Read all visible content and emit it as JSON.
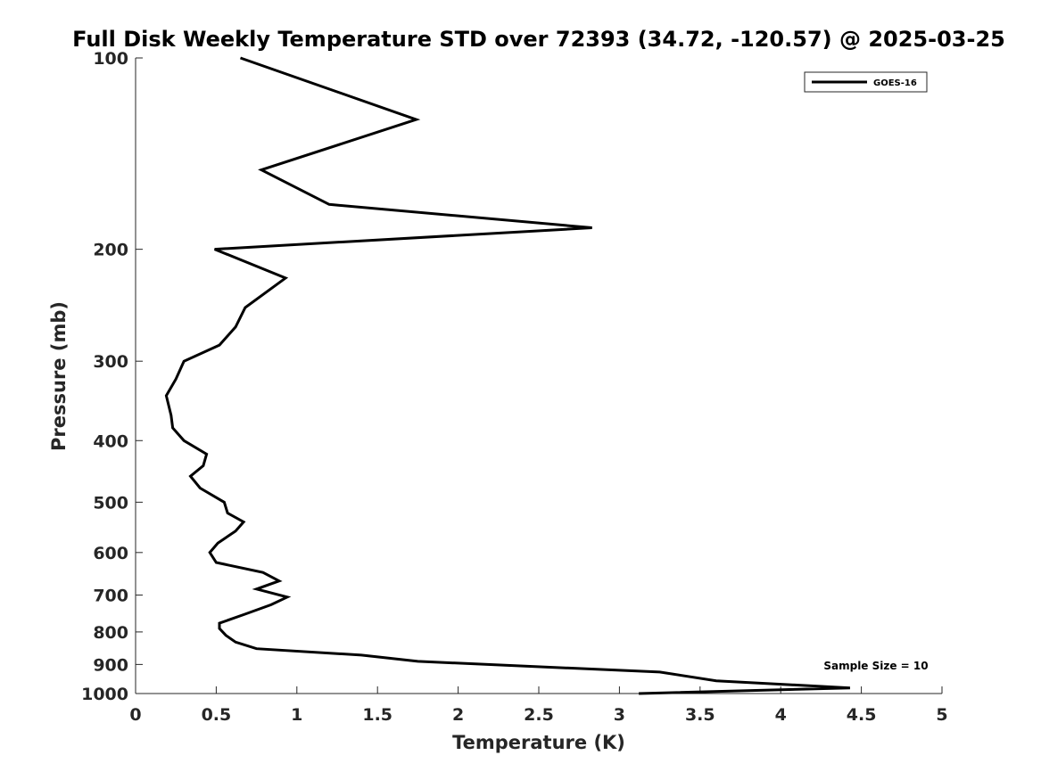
{
  "chart_data": {
    "type": "line",
    "title": "Full Disk Weekly Temperature STD over 72393 (34.72, -120.57) @ 2025-03-25",
    "xlabel": "Temperature (K)",
    "ylabel": "Pressure (mb)",
    "xlim": [
      0,
      5
    ],
    "ylim": [
      100,
      1000
    ],
    "y_scale": "log",
    "y_reversed": true,
    "grid": false,
    "legend_position": "top-right",
    "x_ticks": [
      {
        "value": 0,
        "label": "0"
      },
      {
        "value": 0.5,
        "label": "0.5"
      },
      {
        "value": 1,
        "label": "1"
      },
      {
        "value": 1.5,
        "label": "1.5"
      },
      {
        "value": 2,
        "label": "2"
      },
      {
        "value": 2.5,
        "label": "2.5"
      },
      {
        "value": 3,
        "label": "3"
      },
      {
        "value": 3.5,
        "label": "3.5"
      },
      {
        "value": 4,
        "label": "4"
      },
      {
        "value": 4.5,
        "label": "4.5"
      },
      {
        "value": 5,
        "label": "5"
      }
    ],
    "y_ticks": [
      {
        "value": 100,
        "label": "100"
      },
      {
        "value": 200,
        "label": "200"
      },
      {
        "value": 300,
        "label": "300"
      },
      {
        "value": 400,
        "label": "400"
      },
      {
        "value": 500,
        "label": "500"
      },
      {
        "value": 600,
        "label": "600"
      },
      {
        "value": 700,
        "label": "700"
      },
      {
        "value": 800,
        "label": "800"
      },
      {
        "value": 900,
        "label": "900"
      },
      {
        "value": 1000,
        "label": "1000"
      }
    ],
    "series": [
      {
        "name": "GOES-16",
        "color": "#000000",
        "x": [
          0.65,
          1.74,
          0.78,
          1.2,
          2.83,
          0.49,
          0.93,
          0.68,
          0.62,
          0.52,
          0.3,
          0.25,
          0.19,
          0.22,
          0.23,
          0.3,
          0.44,
          0.42,
          0.34,
          0.4,
          0.55,
          0.57,
          0.67,
          0.62,
          0.51,
          0.46,
          0.5,
          0.79,
          0.89,
          0.75,
          0.94,
          0.84,
          0.68,
          0.52,
          0.52,
          0.56,
          0.62,
          0.75,
          1.4,
          1.75,
          3.25,
          3.6,
          4.43,
          3.12
        ],
        "y": [
          100,
          125,
          150,
          170,
          185,
          200,
          222,
          247,
          265,
          283,
          300,
          320,
          340,
          365,
          382,
          400,
          420,
          438,
          455,
          475,
          500,
          520,
          537,
          555,
          580,
          600,
          622,
          645,
          665,
          685,
          705,
          725,
          750,
          775,
          790,
          810,
          830,
          850,
          870,
          890,
          925,
          955,
          980,
          1000
        ]
      }
    ],
    "annotations": [
      {
        "text": "Sample Size = 10",
        "x": 4.5,
        "y": 905
      }
    ]
  }
}
